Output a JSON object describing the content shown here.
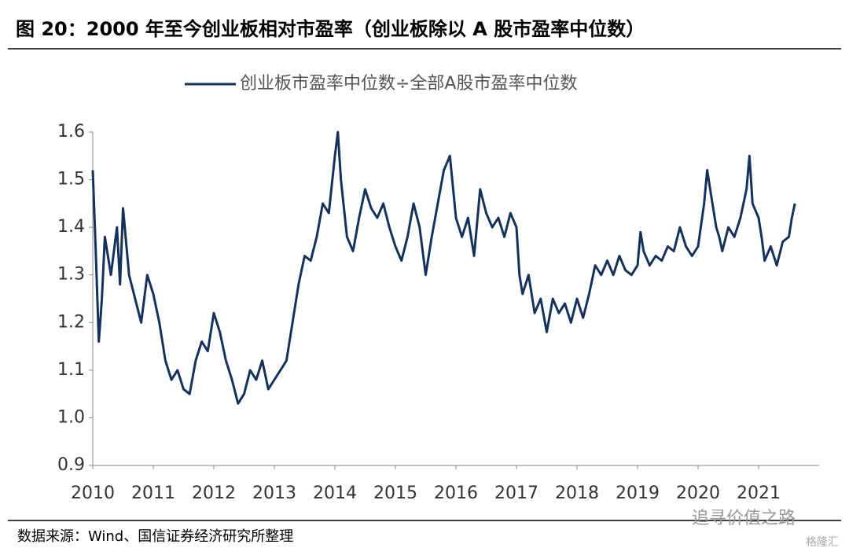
{
  "title": "图 20：2000 年至今创业板相对市盈率（创业板除以 A 股市盈率中位数）",
  "source": "数据来源：Wind、国信证券经济研究所整理",
  "watermark": "追寻价值之路",
  "watermark2": "格隆汇",
  "chart_data": {
    "type": "line",
    "x": [
      2010.0,
      2010.05,
      2010.1,
      2010.15,
      2010.2,
      2010.3,
      2010.4,
      2010.45,
      2010.5,
      2010.6,
      2010.7,
      2010.8,
      2010.9,
      2011.0,
      2011.1,
      2011.2,
      2011.3,
      2011.4,
      2011.5,
      2011.6,
      2011.7,
      2011.8,
      2011.9,
      2012.0,
      2012.1,
      2012.2,
      2012.3,
      2012.4,
      2012.5,
      2012.6,
      2012.7,
      2012.8,
      2012.9,
      2013.0,
      2013.1,
      2013.2,
      2013.3,
      2013.4,
      2013.5,
      2013.6,
      2013.7,
      2013.8,
      2013.9,
      2014.0,
      2014.05,
      2014.1,
      2014.2,
      2014.3,
      2014.4,
      2014.5,
      2014.6,
      2014.7,
      2014.8,
      2014.9,
      2015.0,
      2015.1,
      2015.2,
      2015.3,
      2015.4,
      2015.5,
      2015.6,
      2015.7,
      2015.8,
      2015.9,
      2016.0,
      2016.1,
      2016.2,
      2016.3,
      2016.4,
      2016.5,
      2016.6,
      2016.7,
      2016.8,
      2016.9,
      2017.0,
      2017.05,
      2017.1,
      2017.2,
      2017.3,
      2017.4,
      2017.5,
      2017.6,
      2017.7,
      2017.8,
      2017.9,
      2018.0,
      2018.1,
      2018.2,
      2018.3,
      2018.4,
      2018.5,
      2018.6,
      2018.7,
      2018.8,
      2018.9,
      2019.0,
      2019.05,
      2019.1,
      2019.2,
      2019.3,
      2019.4,
      2019.5,
      2019.6,
      2019.7,
      2019.8,
      2019.9,
      2020.0,
      2020.1,
      2020.15,
      2020.2,
      2020.3,
      2020.35,
      2020.4,
      2020.5,
      2020.6,
      2020.7,
      2020.8,
      2020.85,
      2020.9,
      2021.0,
      2021.05,
      2021.1,
      2021.2,
      2021.3,
      2021.4,
      2021.5,
      2021.55,
      2021.6
    ],
    "series": [
      {
        "name": "创业板市盈率中位数÷全部A股市盈率中位数",
        "color": "#14325c",
        "values": [
          1.52,
          1.35,
          1.16,
          1.25,
          1.38,
          1.3,
          1.4,
          1.28,
          1.44,
          1.3,
          1.25,
          1.2,
          1.3,
          1.26,
          1.2,
          1.12,
          1.08,
          1.1,
          1.06,
          1.05,
          1.12,
          1.16,
          1.14,
          1.22,
          1.18,
          1.12,
          1.08,
          1.03,
          1.05,
          1.1,
          1.08,
          1.12,
          1.06,
          1.08,
          1.1,
          1.12,
          1.2,
          1.28,
          1.34,
          1.33,
          1.38,
          1.45,
          1.43,
          1.55,
          1.6,
          1.5,
          1.38,
          1.35,
          1.42,
          1.48,
          1.44,
          1.42,
          1.45,
          1.4,
          1.36,
          1.33,
          1.38,
          1.45,
          1.4,
          1.3,
          1.38,
          1.45,
          1.52,
          1.55,
          1.42,
          1.38,
          1.42,
          1.34,
          1.48,
          1.43,
          1.4,
          1.42,
          1.38,
          1.43,
          1.4,
          1.3,
          1.26,
          1.3,
          1.22,
          1.25,
          1.18,
          1.25,
          1.22,
          1.24,
          1.2,
          1.25,
          1.21,
          1.26,
          1.32,
          1.3,
          1.33,
          1.3,
          1.34,
          1.31,
          1.3,
          1.32,
          1.39,
          1.35,
          1.32,
          1.34,
          1.33,
          1.36,
          1.35,
          1.4,
          1.36,
          1.34,
          1.36,
          1.45,
          1.52,
          1.48,
          1.4,
          1.38,
          1.35,
          1.4,
          1.38,
          1.42,
          1.48,
          1.55,
          1.45,
          1.42,
          1.38,
          1.33,
          1.36,
          1.32,
          1.37,
          1.38,
          1.42,
          1.45
        ]
      }
    ],
    "xlim": [
      2010,
      2022
    ],
    "xticks": [
      2010,
      2011,
      2012,
      2013,
      2014,
      2015,
      2016,
      2017,
      2018,
      2019,
      2020,
      2021
    ],
    "ylim": [
      0.9,
      1.6
    ],
    "yticks": [
      {
        "value": 0.9,
        "label": "0.9"
      },
      {
        "value": 1.0,
        "label": "1.0"
      },
      1.1,
      1.2,
      1.3,
      1.4,
      1.5,
      1.6
    ],
    "legend": "top"
  }
}
